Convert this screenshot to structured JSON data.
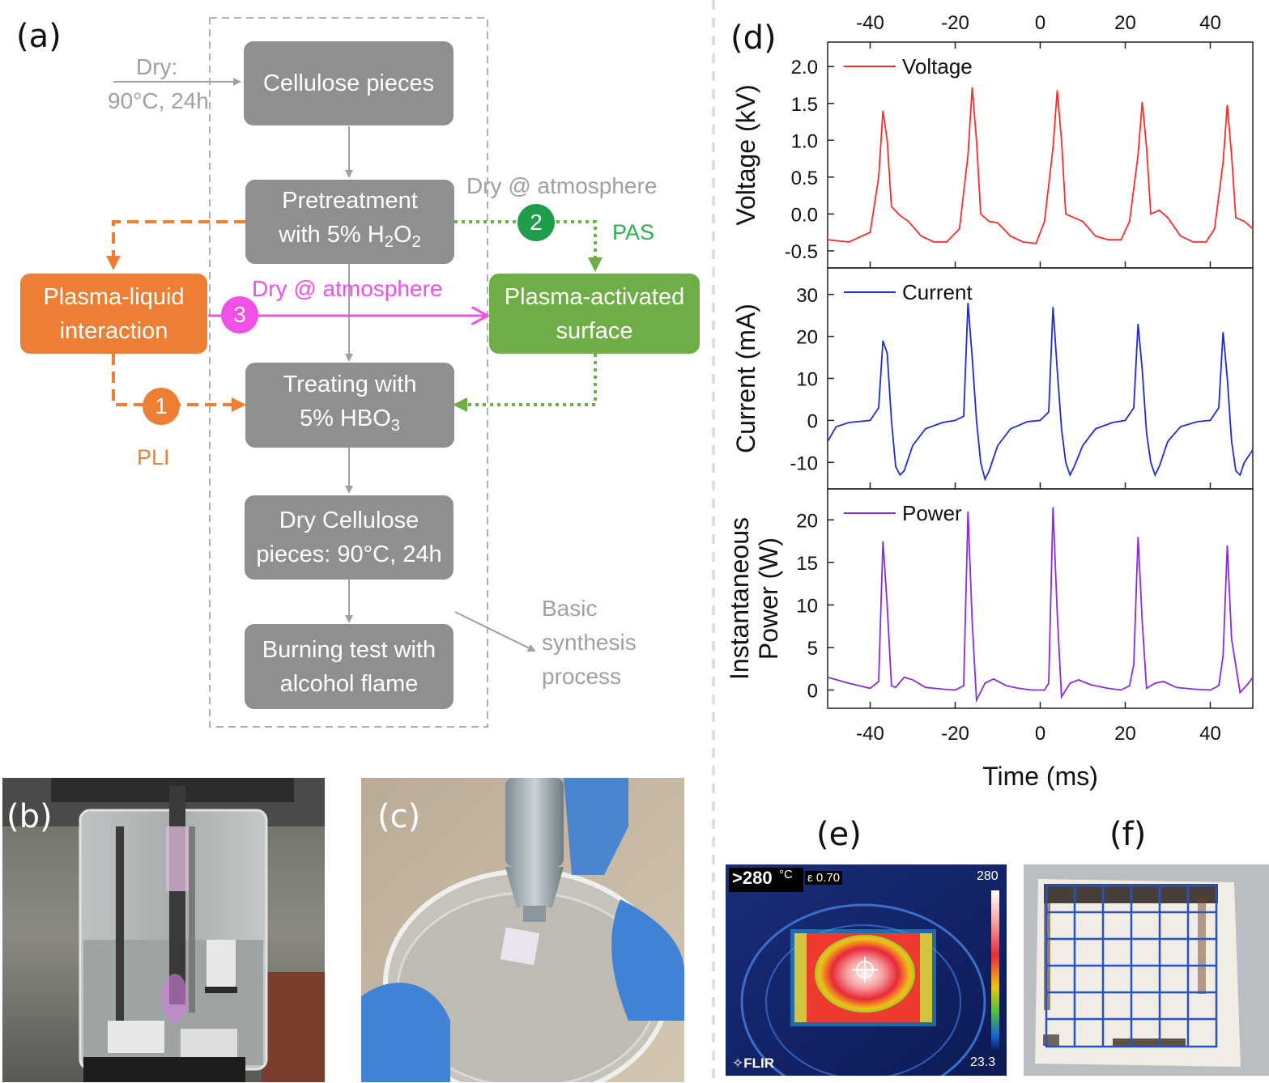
{
  "panels": {
    "a": "(a)",
    "b": "(b)",
    "c": "(c)",
    "d": "(d)",
    "e": "(e)",
    "f": "(f)"
  },
  "flowchart": {
    "dry_note_1": "Dry:",
    "dry_note_2": "90°C, 24h",
    "step1": "Cellulose pieces",
    "step2_line1": "Pretreatment",
    "step2_line2_prefix": "with 5% H",
    "step2_sub1": "2",
    "step2_mid": "O",
    "step2_sub2": "2",
    "step3_line1": "Treating with",
    "step3_line2_prefix": "5% HBO",
    "step3_sub": "3",
    "step4_line1": "Dry Cellulose",
    "step4_line2": "pieces: 90°C, 24h",
    "step5_line1": "Burning test with",
    "step5_line2": "alcohol flame",
    "pli_box_line1": "Plasma-liquid",
    "pli_box_line2": "interaction",
    "pas_box_line1": "Plasma-activated",
    "pas_box_line2": "surface",
    "dry_atm_green": "Dry @ atmosphere",
    "dry_atm_magenta": "Dry @ atmosphere",
    "pas_label": "PAS",
    "pli_label": "PLI",
    "badge_1": "1",
    "badge_2": "2",
    "badge_3": "3",
    "basic_1": "Basic",
    "basic_2": "synthesis",
    "basic_3": "process",
    "colors": {
      "gray_box": "#8f8f8f",
      "orange": "#ec7f33",
      "green": "#6fae46",
      "badge_green": "#1e9e4a",
      "magenta": "#f050e6",
      "note_gray": "#a0a0a0"
    }
  },
  "thermal": {
    "temp_readout": ">280",
    "unit": "°C",
    "emissivity": "ε 0.70",
    "scale_max": "280",
    "scale_min": "23.3",
    "brand": "FLIR"
  },
  "chart_data": {
    "type": "line",
    "x_ticks": [
      "-40",
      "-20",
      "0",
      "20",
      "40"
    ],
    "x_tick_values": [
      -40,
      -20,
      0,
      20,
      40
    ],
    "xlim": [
      -50,
      50
    ],
    "xlabel": "Time (ms)",
    "panels": [
      {
        "name": "Voltage",
        "ylabel": "Voltage (kV)",
        "ylim": [
          -0.6,
          2.2
        ],
        "yticks": [
          2.0,
          1.5,
          1.0,
          0.5,
          0.0,
          -0.5
        ],
        "ytick_labels": [
          "2.0",
          "1.5",
          "1.0",
          "0.5",
          "0.0",
          "-0.5"
        ],
        "color": "#ff2a2a",
        "x": [
          -50,
          -45,
          -40,
          -38,
          -37,
          -36,
          -35,
          -33,
          -31,
          -28,
          -25,
          -22,
          -19,
          -17,
          -16,
          -15,
          -14,
          -12,
          -10,
          -7,
          -4,
          -1,
          1,
          3,
          4,
          5,
          6,
          8,
          10,
          13,
          16,
          19,
          21,
          23,
          24,
          25,
          26,
          28,
          30,
          33,
          36,
          39,
          41,
          43,
          44,
          45,
          46,
          48,
          50
        ],
        "y": [
          -0.35,
          -0.38,
          -0.25,
          0.5,
          1.4,
          1.0,
          0.1,
          -0.02,
          -0.1,
          -0.3,
          -0.38,
          -0.38,
          -0.2,
          0.8,
          1.72,
          1.0,
          0.0,
          -0.1,
          -0.12,
          -0.3,
          -0.38,
          -0.4,
          -0.1,
          0.9,
          1.68,
          1.0,
          0.0,
          -0.05,
          -0.1,
          -0.3,
          -0.35,
          -0.35,
          -0.1,
          0.8,
          1.52,
          0.9,
          0.0,
          0.05,
          -0.05,
          -0.3,
          -0.38,
          -0.38,
          -0.2,
          0.7,
          1.48,
          0.8,
          -0.05,
          -0.1,
          -0.2
        ]
      },
      {
        "name": "Current",
        "ylabel": "Current (mA)",
        "ylim": [
          -14,
          34
        ],
        "yticks": [
          30,
          20,
          10,
          0,
          -10
        ],
        "ytick_labels": [
          "30",
          "20",
          "10",
          "0",
          "-10"
        ],
        "color": "#1f2bd6",
        "x": [
          -50,
          -48,
          -45,
          -40,
          -38,
          -37,
          -36,
          -35,
          -34,
          -33,
          -32,
          -30,
          -27,
          -23,
          -20,
          -18,
          -17,
          -16,
          -15,
          -14,
          -13,
          -12,
          -10,
          -7,
          -3,
          0,
          2,
          3,
          4,
          5,
          6,
          7,
          8,
          10,
          13,
          17,
          20,
          22,
          23,
          24,
          25,
          26,
          27,
          28,
          30,
          33,
          37,
          40,
          42,
          43,
          44,
          45,
          46,
          47,
          48,
          50
        ],
        "y": [
          -5,
          -1.5,
          -0.5,
          0,
          3,
          19,
          16,
          0,
          -11,
          -13,
          -12,
          -6,
          -2,
          -0.5,
          0,
          1,
          28,
          15,
          0,
          -10,
          -14,
          -12,
          -6,
          -2,
          -0.3,
          0,
          2,
          27,
          12,
          -2,
          -10,
          -13,
          -11,
          -6,
          -2,
          -0.5,
          0,
          3,
          23,
          12,
          -3,
          -10,
          -13,
          -11,
          -5,
          -1.5,
          -0.3,
          0,
          3,
          21,
          10,
          -5,
          -12,
          -13,
          -10,
          -7
        ]
      },
      {
        "name": "Power",
        "ylabel_line1": "Instantaneous",
        "ylabel_line2": "Power (W)",
        "ylim": [
          -1,
          22.5
        ],
        "yticks": [
          20,
          15,
          10,
          5,
          0
        ],
        "ytick_labels": [
          "20",
          "15",
          "10",
          "5",
          "0"
        ],
        "color": "#8a2be2",
        "x": [
          -50,
          -45,
          -40,
          -38,
          -37,
          -36,
          -35,
          -34,
          -32,
          -30,
          -27,
          -23,
          -20,
          -18,
          -17,
          -16,
          -15,
          -13,
          -11,
          -8,
          -5,
          -2,
          1,
          2,
          3,
          4,
          5,
          7,
          9,
          12,
          16,
          19,
          21,
          22,
          23,
          24,
          25,
          27,
          29,
          32,
          36,
          40,
          42,
          43,
          44,
          45,
          47,
          49,
          50
        ],
        "y": [
          1.5,
          0.8,
          0.2,
          1.0,
          17.5,
          10,
          0.5,
          0.3,
          1.5,
          1.2,
          0.3,
          0.1,
          0,
          0.5,
          21,
          8,
          -1.2,
          0.8,
          1.3,
          0.5,
          0.2,
          0,
          0,
          0.8,
          21.5,
          9,
          -0.8,
          0.8,
          1.2,
          0.6,
          0.2,
          0,
          0.5,
          3,
          18,
          8,
          0.2,
          0.8,
          1.0,
          0.3,
          0.1,
          0,
          0.5,
          4,
          17,
          6,
          -0.3,
          0.8,
          1.5
        ]
      }
    ]
  }
}
